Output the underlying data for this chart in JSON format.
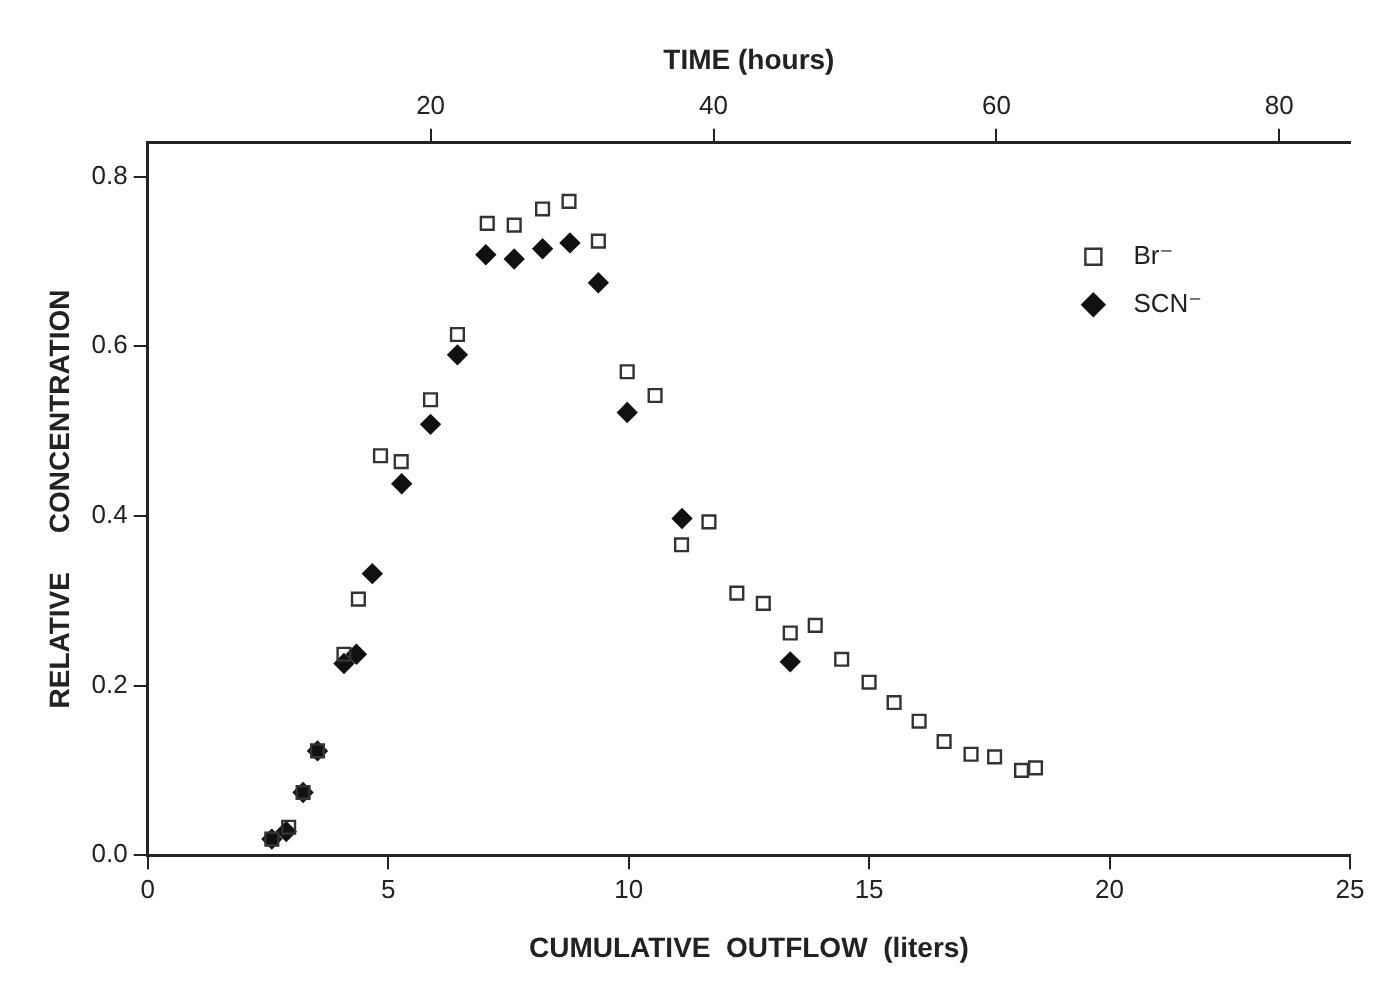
{
  "chart_data": {
    "type": "scatter",
    "xlabel": "CUMULATIVE  OUTFLOW  (liters)",
    "ylabel": "RELATIVE     CONCENTRATION",
    "x2label": "TIME (hours)",
    "xlim": [
      0,
      25
    ],
    "xticks": [
      0,
      5,
      10,
      15,
      20,
      25
    ],
    "x2lim": [
      0,
      85
    ],
    "x2ticks": [
      20,
      40,
      60,
      80
    ],
    "ylim": [
      0,
      0.84
    ],
    "yticks": [
      {
        "value": 0,
        "label": "0.0"
      },
      {
        "value": 0.2,
        "label": "0.2"
      },
      {
        "value": 0.4,
        "label": "0.4"
      },
      {
        "value": 0.6,
        "label": "0.6"
      },
      {
        "value": 0.8,
        "label": "0.8"
      }
    ],
    "grid": false,
    "legend": "top right",
    "series": [
      {
        "name": "Br⁻",
        "color": "#333333",
        "marker": "square",
        "x": [
          2.58,
          2.93,
          3.23,
          3.53,
          4.08,
          4.38,
          4.84,
          5.27,
          5.88,
          6.44,
          7.06,
          7.62,
          8.21,
          8.76,
          9.37,
          9.97,
          10.55,
          11.1,
          11.67,
          12.25,
          12.8,
          13.36,
          13.88,
          14.43,
          15.0,
          15.52,
          16.04,
          16.56,
          17.12,
          17.61,
          18.17,
          18.46
        ],
        "values": [
          0.019,
          0.033,
          0.074,
          0.123,
          0.237,
          0.302,
          0.471,
          0.464,
          0.537,
          0.614,
          0.745,
          0.743,
          0.762,
          0.771,
          0.724,
          0.57,
          0.542,
          0.366,
          0.393,
          0.309,
          0.297,
          0.262,
          0.271,
          0.231,
          0.204,
          0.18,
          0.158,
          0.134,
          0.119,
          0.116,
          0.1,
          0.103
        ]
      },
      {
        "name": "SCN⁻",
        "color": "#111111",
        "marker": "diamond",
        "x": [
          2.58,
          2.88,
          3.23,
          3.53,
          4.08,
          4.34,
          4.67,
          5.28,
          5.88,
          6.44,
          7.03,
          7.62,
          8.21,
          8.78,
          9.37,
          9.97,
          11.11,
          13.36
        ],
        "values": [
          0.019,
          0.028,
          0.074,
          0.123,
          0.226,
          0.237,
          0.332,
          0.438,
          0.508,
          0.59,
          0.708,
          0.703,
          0.715,
          0.722,
          0.675,
          0.522,
          0.397,
          0.228
        ]
      }
    ]
  }
}
